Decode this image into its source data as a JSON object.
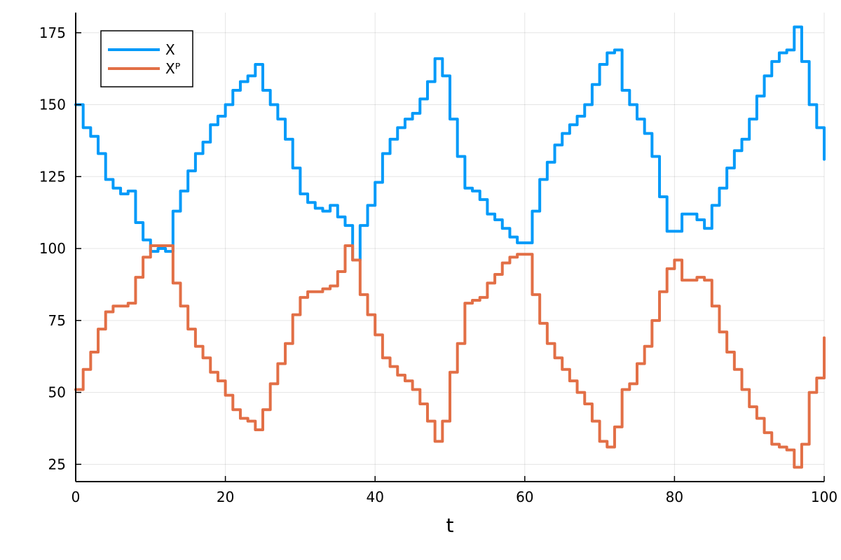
{
  "chart_data": {
    "type": "line",
    "title": "",
    "xlabel": "t",
    "ylabel": "",
    "xlim": [
      0,
      100
    ],
    "ylim": [
      19,
      182
    ],
    "xticks": [
      0,
      20,
      40,
      60,
      80,
      100
    ],
    "yticks": [
      25,
      50,
      75,
      100,
      125,
      150,
      175
    ],
    "xtick_labels": [
      "0",
      "20",
      "40",
      "60",
      "80",
      "100"
    ],
    "ytick_labels": [
      "25",
      "50",
      "75",
      "100",
      "125",
      "150",
      "175"
    ],
    "grid": true,
    "legend_position": "top-left",
    "series": [
      {
        "name": "X",
        "color": "#009AF9",
        "x": [
          0,
          1,
          2,
          3,
          4,
          5,
          6,
          7,
          8,
          9,
          10,
          11,
          12,
          13,
          14,
          15,
          16,
          17,
          18,
          19,
          20,
          21,
          22,
          23,
          24,
          25,
          26,
          27,
          28,
          29,
          30,
          31,
          32,
          33,
          34,
          35,
          36,
          37,
          38,
          39,
          40,
          41,
          42,
          43,
          44,
          45,
          46,
          47,
          48,
          49,
          50,
          51,
          52,
          53,
          54,
          55,
          56,
          57,
          58,
          59,
          60,
          61,
          62,
          63,
          64,
          65,
          66,
          67,
          68,
          69,
          70,
          71,
          72,
          73,
          74,
          75,
          76,
          77,
          78,
          79,
          80,
          81,
          82,
          83,
          84,
          85,
          86,
          87,
          88,
          89,
          90,
          91,
          92,
          93,
          94,
          95,
          96,
          97,
          98,
          99,
          100
        ],
        "values": [
          150,
          142,
          139,
          133,
          124,
          121,
          119,
          120,
          109,
          103,
          99,
          100,
          99,
          113,
          120,
          127,
          133,
          137,
          143,
          146,
          150,
          155,
          158,
          160,
          164,
          155,
          150,
          145,
          138,
          128,
          119,
          116,
          114,
          113,
          115,
          111,
          108,
          96,
          108,
          115,
          123,
          133,
          138,
          142,
          145,
          147,
          152,
          158,
          166,
          160,
          145,
          132,
          121,
          120,
          117,
          112,
          110,
          107,
          104,
          102,
          102,
          113,
          124,
          130,
          136,
          140,
          143,
          146,
          150,
          157,
          164,
          168,
          169,
          155,
          150,
          145,
          140,
          132,
          118,
          106,
          106,
          112,
          112,
          110,
          107,
          115,
          121,
          128,
          134,
          138,
          145,
          153,
          160,
          165,
          168,
          169,
          177,
          165,
          150,
          142,
          131
        ]
      },
      {
        "name": "Xᴾ",
        "color": "#E26F46",
        "x": [
          0,
          1,
          2,
          3,
          4,
          5,
          6,
          7,
          8,
          9,
          10,
          11,
          12,
          13,
          14,
          15,
          16,
          17,
          18,
          19,
          20,
          21,
          22,
          23,
          24,
          25,
          26,
          27,
          28,
          29,
          30,
          31,
          32,
          33,
          34,
          35,
          36,
          37,
          38,
          39,
          40,
          41,
          42,
          43,
          44,
          45,
          46,
          47,
          48,
          49,
          50,
          51,
          52,
          53,
          54,
          55,
          56,
          57,
          58,
          59,
          60,
          61,
          62,
          63,
          64,
          65,
          66,
          67,
          68,
          69,
          70,
          71,
          72,
          73,
          74,
          75,
          76,
          77,
          78,
          79,
          80,
          81,
          82,
          83,
          84,
          85,
          86,
          87,
          88,
          89,
          90,
          91,
          92,
          93,
          94,
          95,
          96,
          97,
          98,
          99,
          100
        ],
        "values": [
          51,
          58,
          64,
          72,
          78,
          80,
          80,
          81,
          90,
          97,
          101,
          101,
          101,
          88,
          80,
          72,
          66,
          62,
          57,
          54,
          49,
          44,
          41,
          40,
          37,
          44,
          53,
          60,
          67,
          77,
          83,
          85,
          85,
          86,
          87,
          92,
          101,
          96,
          84,
          77,
          70,
          62,
          59,
          56,
          54,
          51,
          46,
          40,
          33,
          40,
          57,
          67,
          81,
          82,
          83,
          88,
          91,
          95,
          97,
          98,
          98,
          84,
          74,
          67,
          62,
          58,
          54,
          50,
          46,
          40,
          33,
          31,
          38,
          51,
          53,
          60,
          66,
          75,
          85,
          93,
          96,
          89,
          89,
          90,
          89,
          80,
          71,
          64,
          58,
          51,
          45,
          41,
          36,
          32,
          31,
          30,
          24,
          32,
          50,
          55,
          69
        ]
      }
    ]
  }
}
